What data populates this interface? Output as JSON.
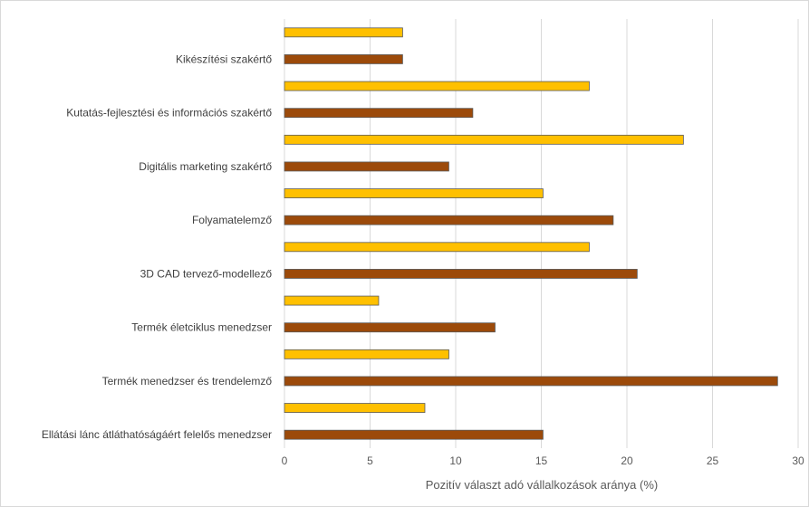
{
  "chart_data": {
    "type": "bar",
    "orientation": "horizontal",
    "xlabel": "Pozitív választ adó vállalkozások aránya (%)",
    "xlim": [
      0,
      30
    ],
    "xticks": [
      0,
      5,
      10,
      15,
      20,
      25,
      30
    ],
    "grid": true,
    "legend": "none",
    "colors": {
      "bar_a": "#ffc000",
      "bar_b": "#9c4a0a",
      "grid": "#d9d9d9",
      "bar_border": "#5a5a5a"
    },
    "categories": [
      "Kikészítési szakértő",
      "Kutatás-fejlesztési és információs szakértő",
      "Digitális marketing szakértő",
      "Folyamatelemző",
      "3D CAD tervező-modellező",
      "Termék életciklus menedzser",
      "Termék menedzser és trendelemző",
      "Ellátási lánc átláthatóságáért felelős menedzser"
    ],
    "series": [
      {
        "color": "#ffc000",
        "values": [
          6.9,
          17.8,
          23.3,
          15.1,
          17.8,
          5.5,
          9.6,
          8.2
        ]
      },
      {
        "color": "#9c4a0a",
        "values": [
          6.9,
          11.0,
          9.6,
          19.2,
          20.6,
          12.3,
          28.8,
          15.1
        ]
      }
    ]
  }
}
